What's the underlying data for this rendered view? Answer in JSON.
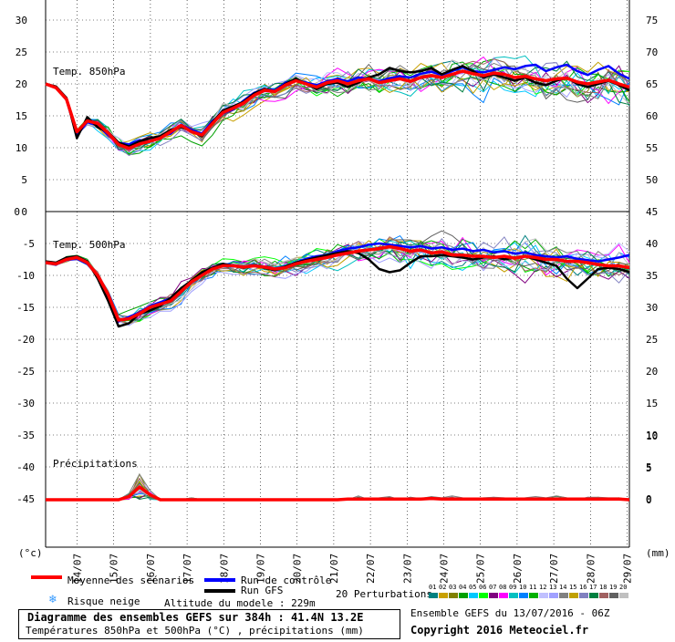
{
  "chart_data": {
    "type": "line",
    "panels": [
      {
        "name": "Temp. 850hPa",
        "ylim_left": [
          0,
          30
        ],
        "left_ticks": [
          0,
          5,
          10,
          15,
          20,
          25,
          30
        ],
        "right_ticks": [
          50,
          55,
          60,
          65,
          70,
          75
        ],
        "mean": [
          20.0,
          19.4,
          17.6,
          12.5,
          14.2,
          13.8,
          12.3,
          10.5,
          9.9,
          10.6,
          11.0,
          11.5,
          12.5,
          13.5,
          12.5,
          12.0,
          13.8,
          15.5,
          16.2,
          17.0,
          18.2,
          19.0,
          18.8,
          19.8,
          20.5,
          20.0,
          19.5,
          20.2,
          20.5,
          20.0,
          20.5,
          20.8,
          20.2,
          20.5,
          20.8,
          20.4,
          21.0,
          21.3,
          21.0,
          21.5,
          22.0,
          21.6,
          21.3,
          21.7,
          21.5,
          21.0,
          21.2,
          20.8,
          20.5,
          20.8,
          20.9,
          20.3,
          20.0,
          20.3,
          20.6,
          20.0,
          19.5
        ],
        "gfs": [
          20.0,
          19.6,
          17.8,
          11.5,
          14.8,
          13.2,
          12.4,
          10.8,
          10.2,
          11.0,
          11.5,
          11.8,
          12.8,
          13.2,
          12.6,
          11.8,
          14.0,
          15.8,
          16.5,
          17.2,
          18.5,
          19.2,
          18.8,
          20.0,
          20.8,
          20.0,
          19.2,
          20.0,
          20.2,
          19.5,
          20.2,
          21.0,
          21.5,
          22.5,
          22.0,
          21.8,
          22.0,
          22.5,
          21.5,
          22.2,
          22.8,
          22.0,
          21.0,
          21.5,
          21.0,
          20.5,
          21.0,
          20.2,
          19.8,
          20.5,
          21.0,
          20.0,
          19.5,
          20.0,
          20.5,
          19.8,
          19.0
        ],
        "control": [
          20.0,
          19.4,
          17.5,
          12.0,
          14.0,
          13.5,
          12.0,
          10.8,
          10.5,
          11.2,
          11.0,
          11.8,
          12.2,
          13.6,
          12.8,
          12.2,
          14.2,
          15.4,
          16.0,
          17.4,
          18.6,
          19.2,
          19.0,
          20.2,
          20.6,
          20.2,
          19.8,
          20.4,
          20.8,
          20.4,
          21.0,
          20.8,
          20.4,
          20.9,
          21.2,
          21.0,
          21.6,
          21.9,
          21.4,
          22.0,
          22.6,
          22.0,
          21.8,
          22.2,
          22.6,
          22.3,
          22.8,
          23.0,
          22.0,
          22.6,
          23.0,
          22.0,
          21.4,
          22.2,
          22.8,
          21.6,
          20.8
        ],
        "spread": [
          0.2,
          0.3,
          0.6,
          1.0,
          1.0,
          1.2,
          1.5,
          1.5,
          1.5,
          1.6,
          1.6,
          1.6,
          1.6,
          1.6,
          1.6,
          1.6,
          1.8,
          2.0,
          2.0,
          2.0,
          2.0,
          2.0,
          2.0,
          2.0,
          2.2,
          2.2,
          2.2,
          2.4,
          2.4,
          2.4,
          2.6,
          2.6,
          2.6,
          2.8,
          2.8,
          2.8,
          3.0,
          3.0,
          3.0,
          3.2,
          3.2,
          3.2,
          3.4,
          3.4,
          3.4,
          3.6,
          3.6,
          3.6,
          3.8,
          3.8,
          3.8,
          4.0,
          4.0,
          4.0,
          4.2,
          4.2,
          4.2
        ]
      },
      {
        "name": "Temp. 500hPa",
        "ylim_left": [
          -45,
          0
        ],
        "left_ticks": [
          0,
          -5,
          -10,
          -15,
          -20,
          -25,
          -30,
          -35,
          -40,
          -45
        ],
        "right_ticks": [
          0,
          5,
          10,
          15,
          20,
          25,
          30,
          35,
          40,
          45
        ],
        "mean": [
          -8.0,
          -8.2,
          -7.5,
          -7.2,
          -8.0,
          -10.0,
          -13.0,
          -17.0,
          -16.8,
          -16.0,
          -15.0,
          -14.5,
          -14.0,
          -12.5,
          -11.0,
          -10.0,
          -9.0,
          -8.5,
          -8.5,
          -8.7,
          -8.5,
          -8.7,
          -9.0,
          -8.8,
          -8.2,
          -7.8,
          -7.5,
          -7.2,
          -6.8,
          -6.5,
          -6.2,
          -6.0,
          -5.8,
          -5.5,
          -5.8,
          -6.2,
          -6.0,
          -6.5,
          -6.3,
          -6.8,
          -6.8,
          -7.0,
          -7.0,
          -7.2,
          -7.0,
          -7.3,
          -7.0,
          -7.2,
          -7.5,
          -7.5,
          -7.8,
          -7.8,
          -8.0,
          -8.3,
          -8.5,
          -8.5,
          -8.8
        ],
        "gfs": [
          -7.8,
          -8.0,
          -7.2,
          -7.0,
          -7.8,
          -10.5,
          -14.0,
          -18.0,
          -17.5,
          -16.0,
          -15.5,
          -14.8,
          -13.5,
          -12.0,
          -10.8,
          -9.5,
          -8.8,
          -8.2,
          -8.5,
          -8.8,
          -8.5,
          -8.8,
          -9.2,
          -8.6,
          -8.0,
          -7.6,
          -7.2,
          -6.8,
          -6.5,
          -6.2,
          -6.5,
          -7.5,
          -9.0,
          -9.5,
          -9.2,
          -8.0,
          -7.0,
          -7.0,
          -6.8,
          -7.0,
          -7.2,
          -7.5,
          -7.2,
          -7.0,
          -7.5,
          -7.2,
          -7.0,
          -7.5,
          -8.0,
          -8.5,
          -10.5,
          -12.0,
          -10.5,
          -9.0,
          -8.8,
          -9.0,
          -9.5
        ],
        "control": [
          -8.0,
          -8.3,
          -7.6,
          -7.4,
          -8.2,
          -10.0,
          -13.2,
          -17.2,
          -16.5,
          -15.8,
          -14.8,
          -14.2,
          -13.6,
          -12.2,
          -10.8,
          -9.8,
          -8.8,
          -8.2,
          -8.4,
          -8.6,
          -8.4,
          -8.6,
          -8.9,
          -8.6,
          -8.0,
          -7.4,
          -7.0,
          -6.8,
          -6.2,
          -5.8,
          -5.6,
          -5.2,
          -5.0,
          -5.2,
          -5.4,
          -5.6,
          -5.4,
          -5.8,
          -5.6,
          -6.0,
          -5.8,
          -6.2,
          -6.0,
          -6.4,
          -6.2,
          -6.6,
          -6.4,
          -6.8,
          -7.0,
          -7.2,
          -7.0,
          -7.4,
          -7.6,
          -7.8,
          -7.5,
          -7.2,
          -6.8
        ],
        "spread": [
          0.3,
          0.4,
          0.5,
          0.5,
          0.6,
          0.8,
          1.0,
          1.2,
          1.5,
          1.5,
          1.5,
          1.5,
          1.5,
          1.5,
          1.5,
          1.5,
          1.5,
          1.5,
          1.6,
          1.6,
          1.8,
          1.8,
          2.0,
          2.0,
          2.0,
          2.2,
          2.2,
          2.4,
          2.4,
          2.4,
          2.6,
          2.6,
          2.6,
          2.8,
          2.8,
          2.8,
          3.0,
          3.0,
          3.0,
          3.0,
          3.0,
          3.2,
          3.2,
          3.2,
          3.2,
          3.4,
          3.4,
          3.4,
          3.4,
          3.4,
          3.6,
          3.6,
          3.6,
          3.6,
          3.6,
          3.8,
          3.8
        ]
      },
      {
        "name": "Précipitations",
        "right_ticks": [
          0,
          5,
          10
        ],
        "mean": [
          0,
          0,
          0,
          0,
          0,
          0,
          0,
          0,
          0.5,
          2.0,
          0.8,
          0,
          0,
          0,
          0,
          0,
          0,
          0,
          0,
          0,
          0,
          0,
          0,
          0,
          0,
          0,
          0,
          0,
          0,
          0.1,
          0.1,
          0.1,
          0.1,
          0.1,
          0.1,
          0.1,
          0.1,
          0.2,
          0.1,
          0.1,
          0.1,
          0.1,
          0.1,
          0.1,
          0.1,
          0.1,
          0.1,
          0.1,
          0.1,
          0.1,
          0.1,
          0.1,
          0.1,
          0.1,
          0.1,
          0.1,
          0
        ],
        "max": [
          0,
          0,
          0,
          0,
          0,
          0,
          0,
          0,
          1.0,
          4.0,
          1.5,
          0,
          0,
          0,
          0.3,
          0,
          0,
          0,
          0,
          0,
          0,
          0,
          0,
          0,
          0,
          0,
          0,
          0,
          0,
          0,
          0.6,
          0,
          0.3,
          0.5,
          0,
          0.4,
          0.2,
          0.5,
          0.3,
          0.6,
          0.3,
          0,
          0.3,
          0.4,
          0.3,
          0,
          0.3,
          0.5,
          0.3,
          0.6,
          0.3,
          0,
          0.4,
          0.4,
          0.3,
          0.3,
          0
        ]
      }
    ],
    "x_tick_labels": [
      "14/07",
      "15/07",
      "16/07",
      "17/07",
      "18/07",
      "19/07",
      "20/07",
      "21/07",
      "22/07",
      "23/07",
      "24/07",
      "25/07",
      "26/07",
      "27/07",
      "28/07",
      "29/07"
    ],
    "left_unit": "(°c)",
    "right_unit": "(mm)",
    "colors": {
      "mean": "#ff0000",
      "gfs": "#000000",
      "control": "#0000ff",
      "grid": "#000000"
    },
    "perturbation_colors": [
      "#008080",
      "#c8a000",
      "#808000",
      "#00a000",
      "#00c8ff",
      "#00ff00",
      "#800080",
      "#ff00ff",
      "#00c0c0",
      "#0080ff",
      "#00b000",
      "#c0c0ff",
      "#a0a0ff",
      "#808080",
      "#c0a000",
      "#8080c0",
      "#008040",
      "#a06060",
      "#606060",
      "#c0c0c0"
    ]
  },
  "legend": {
    "mean_label": "Moyenne des scénarios",
    "control_label": "Run de contrôle",
    "gfs_label": "Run GFS",
    "snow_label": "Risque neige",
    "altitude_label": "Altitude du modele : 229m",
    "perturbations_label": "20 Perturbations",
    "perturbation_numbers": [
      "01",
      "02",
      "03",
      "04",
      "05",
      "06",
      "07",
      "08",
      "09",
      "10",
      "11",
      "12",
      "13",
      "14",
      "15",
      "16",
      "17",
      "18",
      "19",
      "20"
    ]
  },
  "footer": {
    "title": "Diagramme des ensembles GEFS sur 384h : 41.4N 13.2E",
    "subtitle": "Températures 850hPa et 500hPa (°C) , précipitations (mm)",
    "run_info": "Ensemble GEFS du 13/07/2016 - 06Z",
    "copyright": "Copyright 2016 Meteociel.fr"
  }
}
